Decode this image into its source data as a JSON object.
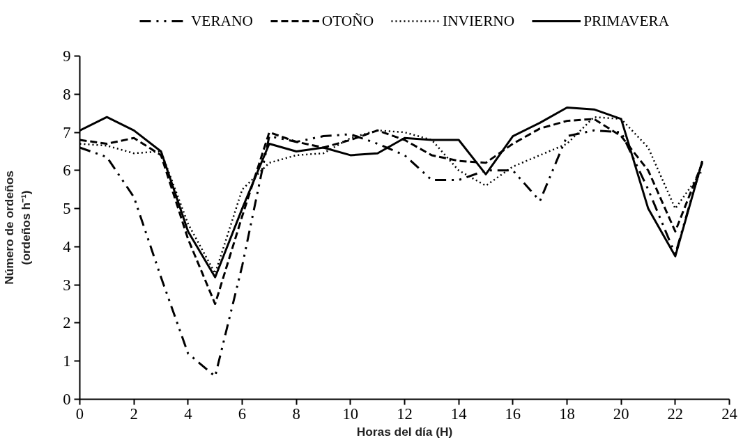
{
  "chart_data": {
    "type": "line",
    "xlabel": "Horas del día (H)",
    "ylabel": "Número de ordeños\n(ordeños h⁻¹)",
    "x": [
      0,
      1,
      2,
      3,
      4,
      5,
      6,
      7,
      8,
      9,
      10,
      11,
      12,
      13,
      14,
      15,
      16,
      17,
      18,
      19,
      20,
      21,
      22,
      23
    ],
    "xlim": [
      0,
      24
    ],
    "xticks": [
      0,
      2,
      4,
      6,
      8,
      10,
      12,
      14,
      16,
      18,
      20,
      22,
      24
    ],
    "ylim": [
      0,
      9
    ],
    "yticks": [
      0,
      1,
      2,
      3,
      4,
      5,
      6,
      7,
      8,
      9
    ],
    "grid": false,
    "legend": "top",
    "marker": "none",
    "series": [
      {
        "name": "VERANO",
        "color": "#000000",
        "line_style": "dashdotdot",
        "values": [
          6.6,
          6.35,
          5.3,
          3.2,
          1.2,
          0.6,
          3.5,
          6.9,
          6.75,
          6.9,
          6.95,
          6.7,
          6.4,
          5.75,
          5.75,
          6.0,
          6.0,
          5.2,
          6.9,
          7.05,
          7.0,
          5.5,
          3.8,
          6.25
        ]
      },
      {
        "name": "OTOÑO",
        "color": "#000000",
        "line_style": "dashed",
        "values": [
          6.8,
          6.7,
          6.85,
          6.4,
          4.2,
          2.5,
          4.8,
          7.0,
          6.75,
          6.6,
          6.8,
          7.05,
          6.8,
          6.4,
          6.25,
          6.2,
          6.7,
          7.1,
          7.3,
          7.35,
          6.9,
          6.0,
          4.4,
          6.2
        ]
      },
      {
        "name": "INVIERNO",
        "color": "#000000",
        "line_style": "dotted",
        "values": [
          6.7,
          6.65,
          6.45,
          6.5,
          4.6,
          3.3,
          5.5,
          6.2,
          6.4,
          6.45,
          6.85,
          7.05,
          7.0,
          6.8,
          6.0,
          5.6,
          6.1,
          6.4,
          6.7,
          7.4,
          7.35,
          6.6,
          5.0,
          6.0
        ]
      },
      {
        "name": "PRIMAVERA",
        "color": "#000000",
        "line_style": "solid",
        "values": [
          7.05,
          7.4,
          7.05,
          6.5,
          4.4,
          3.2,
          5.0,
          6.7,
          6.5,
          6.6,
          6.4,
          6.45,
          6.85,
          6.8,
          6.8,
          5.9,
          6.9,
          7.25,
          7.65,
          7.6,
          7.35,
          5.0,
          3.75,
          6.25
        ]
      }
    ]
  }
}
